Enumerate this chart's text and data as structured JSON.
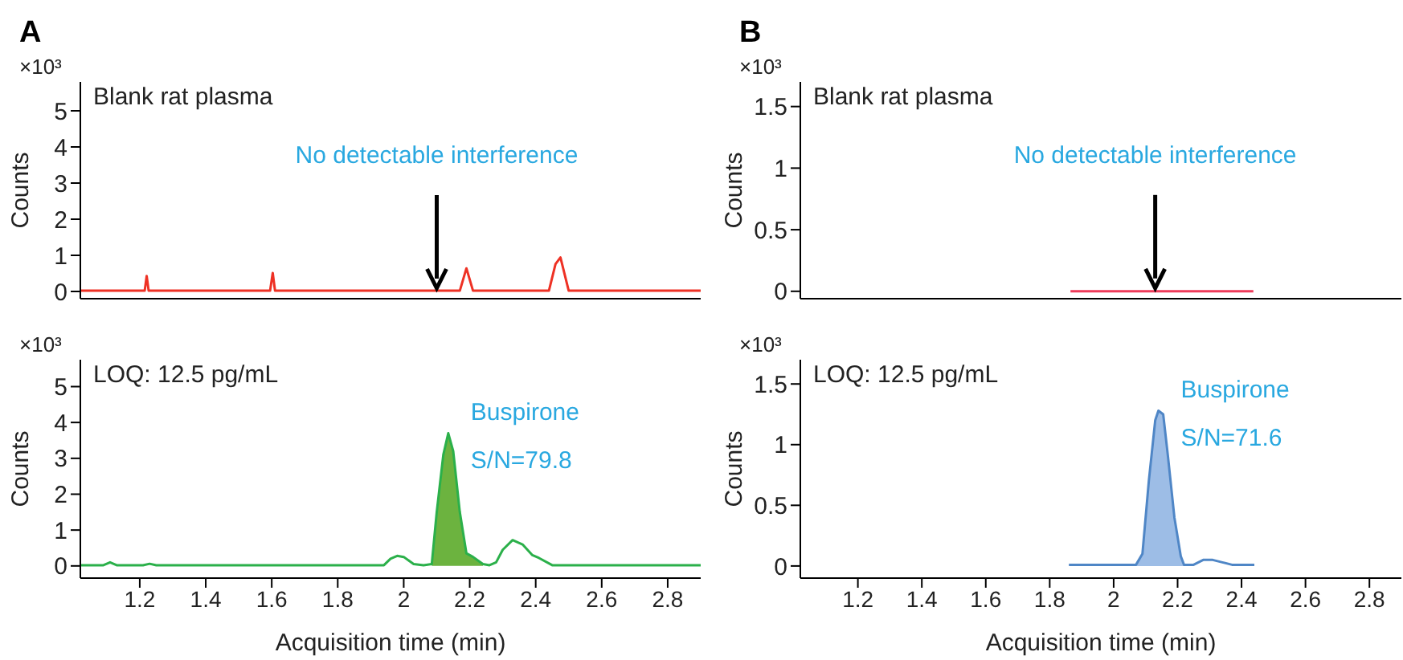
{
  "chart_data": [
    {
      "type": "line",
      "title": "A",
      "ylabel": "Counts",
      "tick_labels": "y",
      "xlim": [
        1.02,
        2.9
      ],
      "xticks": [
        1.2,
        1.4,
        1.6,
        1.8,
        2,
        2.2,
        2.4,
        2.6,
        2.8
      ],
      "ylim": [
        -0.2,
        5.8
      ],
      "yticks": [
        0,
        1,
        2,
        3,
        4,
        5
      ],
      "annotations": [
        "×10³",
        "Blank rat plasma",
        {
          "text": "No detectable interference",
          "x": 2.1,
          "y": 0
        }
      ],
      "series": [
        {
          "type": "line",
          "color": "#ee3124",
          "x": [
            1.02,
            1.215,
            1.221,
            1.227,
            1.595,
            1.603,
            1.61,
            2.17,
            2.19,
            2.21,
            2.44,
            2.46,
            2.475,
            2.5,
            2.9
          ],
          "values": [
            0.02,
            0.02,
            0.43,
            0.02,
            0.02,
            0.51,
            0.02,
            0.02,
            0.64,
            0.02,
            0.02,
            0.76,
            0.94,
            0.02,
            0.02
          ]
        }
      ]
    },
    {
      "type": "line",
      "title": "B",
      "ylabel": "Counts",
      "tick_labels": "y",
      "xlim": [
        1.02,
        2.9
      ],
      "xticks": [
        1.2,
        1.4,
        1.6,
        1.8,
        2,
        2.2,
        2.4,
        2.6,
        2.8
      ],
      "ylim": [
        -0.06,
        1.7
      ],
      "yticks": [
        0,
        0.5,
        1,
        1.5
      ],
      "annotations": [
        "×10³",
        "Blank rat plasma",
        {
          "text": "No detectable interference",
          "x": 2.13,
          "y": 0
        }
      ],
      "series": [
        {
          "type": "line",
          "color": "#ee3b5a",
          "x": [
            1.865,
            2.437
          ],
          "values": [
            0,
            0
          ]
        }
      ]
    },
    {
      "type": "line",
      "ylabel": "Counts",
      "xlabel": "Acquisition time (min)",
      "xlim": [
        1.02,
        2.9
      ],
      "xticks": [
        1.2,
        1.4,
        1.6,
        1.8,
        2,
        2.2,
        2.4,
        2.6,
        2.8
      ],
      "ylim": [
        -0.34,
        5.75
      ],
      "yticks": [
        0,
        1,
        2,
        3,
        4,
        5
      ],
      "annotations": [
        "×10³",
        "LOQ: 12.5 pg/mL",
        {
          "text": "Buspirone",
          "x": 2.135,
          "y": 3.7
        },
        {
          "text": "S/N=79.8",
          "x": 2.135,
          "y": 3.7
        }
      ],
      "series": [
        {
          "type": "area",
          "color": "#6cb33f",
          "x": [
            2.085,
            2.1,
            2.12,
            2.135,
            2.15,
            2.17,
            2.19,
            2.21,
            2.24
          ],
          "values": [
            0.05,
            1.5,
            3.1,
            3.7,
            3.2,
            1.5,
            0.35,
            0.25,
            0.05
          ]
        },
        {
          "type": "line",
          "color": "#2bb04a",
          "x": [
            1.02,
            1.09,
            1.11,
            1.13,
            1.21,
            1.23,
            1.25,
            1.62,
            1.94,
            1.96,
            1.98,
            2.0,
            2.03,
            2.06,
            2.085,
            2.1,
            2.12,
            2.135,
            2.15,
            2.17,
            2.19,
            2.21,
            2.24,
            2.26,
            2.28,
            2.3,
            2.33,
            2.36,
            2.39,
            2.41,
            2.45,
            2.9
          ],
          "values": [
            0.02,
            0.02,
            0.1,
            0.02,
            0.02,
            0.06,
            0.02,
            0.02,
            0.02,
            0.2,
            0.28,
            0.25,
            0.05,
            0.02,
            0.05,
            1.5,
            3.1,
            3.7,
            3.2,
            1.5,
            0.35,
            0.25,
            0.05,
            0.02,
            0.1,
            0.45,
            0.72,
            0.6,
            0.3,
            0.22,
            0.02,
            0.02
          ]
        }
      ]
    },
    {
      "type": "line",
      "ylabel": "Counts",
      "xlabel": "Acquisition time (min)",
      "xlim": [
        1.02,
        2.9
      ],
      "xticks": [
        1.2,
        1.4,
        1.6,
        1.8,
        2,
        2.2,
        2.4,
        2.6,
        2.8
      ],
      "ylim": [
        -0.1,
        1.7
      ],
      "yticks": [
        0,
        0.5,
        1,
        1.5
      ],
      "annotations": [
        "×10³",
        "LOQ: 12.5 pg/mL",
        {
          "text": "Buspirone",
          "x": 2.14,
          "y": 1.28
        },
        {
          "text": "S/N=71.6",
          "x": 2.14,
          "y": 1.28
        }
      ],
      "series": [
        {
          "type": "area",
          "color": "#9dbde6",
          "x": [
            2.07,
            2.09,
            2.11,
            2.13,
            2.14,
            2.155,
            2.17,
            2.19,
            2.21,
            2.22
          ],
          "values": [
            0.01,
            0.1,
            0.7,
            1.2,
            1.28,
            1.25,
            0.9,
            0.4,
            0.08,
            0.01
          ]
        },
        {
          "type": "line",
          "color": "#4f86c6",
          "x": [
            1.86,
            2.07,
            2.09,
            2.11,
            2.13,
            2.14,
            2.155,
            2.17,
            2.19,
            2.21,
            2.22,
            2.25,
            2.28,
            2.31,
            2.34,
            2.37,
            2.44
          ],
          "values": [
            0.01,
            0.01,
            0.1,
            0.7,
            1.2,
            1.28,
            1.25,
            0.9,
            0.4,
            0.08,
            0.01,
            0.01,
            0.05,
            0.05,
            0.03,
            0.01,
            0.01
          ]
        }
      ]
    }
  ]
}
